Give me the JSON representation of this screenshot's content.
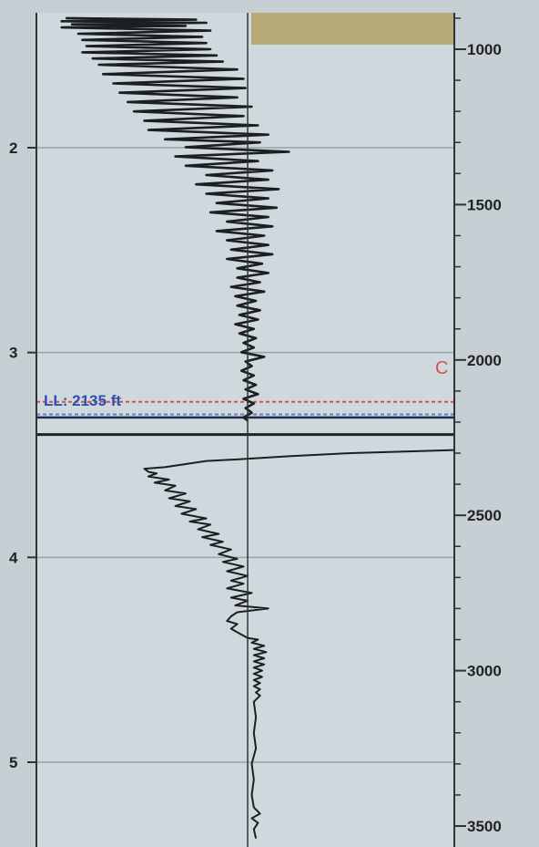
{
  "chart_data": {
    "type": "line",
    "title": "",
    "xlabel": "",
    "ylabel": "",
    "left_axis": {
      "ticks": [
        "2",
        "3",
        "4",
        "5"
      ],
      "values": [
        2,
        3,
        4,
        5
      ],
      "range": [
        1.4,
        5.4
      ]
    },
    "right_axis": {
      "ticks": [
        "1000",
        "1500",
        "2000",
        "2500",
        "3000",
        "3500"
      ],
      "values": [
        1000,
        1500,
        2000,
        2500,
        3000,
        3500
      ],
      "range": [
        880,
        3540
      ],
      "unit": "ft"
    },
    "grid": true,
    "center_reference_value": 0,
    "x_range": [
      -1,
      1
    ],
    "markers": [
      {
        "label": "LL: 2135 ft",
        "depth": 2135,
        "color": "#d8504e",
        "style": "dashed"
      },
      {
        "label": "",
        "depth": 2175,
        "color": "#5b7fd6",
        "style": "dashed"
      },
      {
        "label": "",
        "depth": 2185,
        "color": "#1e2a46",
        "style": "solid"
      },
      {
        "label": "",
        "depth": 2240,
        "color": "#222222",
        "style": "solid"
      }
    ],
    "marker_c_label": "C",
    "series": [
      {
        "points": [
          [
            -0.88,
            900
          ],
          [
            -0.25,
            905
          ],
          [
            -0.9,
            910
          ],
          [
            -0.2,
            915
          ],
          [
            -0.85,
            920
          ],
          [
            -0.3,
            925
          ],
          [
            -0.9,
            930
          ],
          [
            -0.18,
            940
          ],
          [
            -0.82,
            950
          ],
          [
            -0.22,
            960
          ],
          [
            -0.8,
            970
          ],
          [
            -0.2,
            980
          ],
          [
            -0.78,
            990
          ],
          [
            -0.18,
            1000
          ],
          [
            -0.8,
            1010
          ],
          [
            -0.15,
            1020
          ],
          [
            -0.75,
            1030
          ],
          [
            -0.12,
            1040
          ],
          [
            -0.72,
            1050
          ],
          [
            -0.05,
            1065
          ],
          [
            -0.7,
            1080
          ],
          [
            -0.02,
            1095
          ],
          [
            -0.65,
            1110
          ],
          [
            -0.01,
            1125
          ],
          [
            -0.62,
            1140
          ],
          [
            -0.05,
            1155
          ],
          [
            -0.58,
            1170
          ],
          [
            0.02,
            1185
          ],
          [
            -0.55,
            1200
          ],
          [
            -0.02,
            1215
          ],
          [
            -0.5,
            1230
          ],
          [
            0.05,
            1245
          ],
          [
            -0.48,
            1260
          ],
          [
            0.1,
            1275
          ],
          [
            -0.4,
            1290
          ],
          [
            0.06,
            1300
          ],
          [
            -0.3,
            1315
          ],
          [
            0.2,
            1330
          ],
          [
            -0.35,
            1345
          ],
          [
            0.05,
            1360
          ],
          [
            -0.3,
            1375
          ],
          [
            0.12,
            1390
          ],
          [
            -0.2,
            1405
          ],
          [
            0.1,
            1420
          ],
          [
            -0.25,
            1435
          ],
          [
            0.15,
            1450
          ],
          [
            -0.2,
            1465
          ],
          [
            0.1,
            1480
          ],
          [
            -0.15,
            1495
          ],
          [
            0.14,
            1510
          ],
          [
            -0.18,
            1525
          ],
          [
            0.1,
            1540
          ],
          [
            -0.1,
            1555
          ],
          [
            0.12,
            1570
          ],
          [
            -0.15,
            1585
          ],
          [
            0.08,
            1600
          ],
          [
            -0.1,
            1615
          ],
          [
            0.1,
            1630
          ],
          [
            -0.08,
            1645
          ],
          [
            0.12,
            1660
          ],
          [
            -0.1,
            1675
          ],
          [
            0.07,
            1690
          ],
          [
            -0.05,
            1705
          ],
          [
            0.1,
            1720
          ],
          [
            -0.05,
            1735
          ],
          [
            0.06,
            1750
          ],
          [
            -0.08,
            1765
          ],
          [
            0.08,
            1780
          ],
          [
            -0.06,
            1795
          ],
          [
            0.04,
            1810
          ],
          [
            -0.05,
            1825
          ],
          [
            0.06,
            1840
          ],
          [
            -0.04,
            1855
          ],
          [
            0.05,
            1870
          ],
          [
            -0.06,
            1885
          ],
          [
            0.03,
            1900
          ],
          [
            -0.04,
            1915
          ],
          [
            0.04,
            1930
          ],
          [
            -0.02,
            1945
          ],
          [
            0.03,
            1960
          ],
          [
            -0.03,
            1975
          ],
          [
            0.08,
            1990
          ],
          [
            -0.01,
            2005
          ],
          [
            0.02,
            2020
          ],
          [
            -0.03,
            2035
          ],
          [
            0.03,
            2050
          ],
          [
            -0.02,
            2065
          ],
          [
            0.04,
            2080
          ],
          [
            -0.01,
            2095
          ],
          [
            0.05,
            2110
          ],
          [
            -0.02,
            2125
          ],
          [
            0.03,
            2140
          ],
          [
            -0.01,
            2155
          ],
          [
            0.02,
            2170
          ],
          [
            -0.02,
            2185
          ],
          [
            0.0,
            2195
          ]
        ]
      },
      {
        "points": [
          [
            1.0,
            2290
          ],
          [
            0.5,
            2300
          ],
          [
            0.2,
            2310
          ],
          [
            -0.05,
            2320
          ],
          [
            -0.2,
            2325
          ],
          [
            -0.3,
            2335
          ],
          [
            -0.4,
            2345
          ],
          [
            -0.5,
            2350
          ],
          [
            -0.48,
            2360
          ],
          [
            -0.44,
            2365
          ],
          [
            -0.48,
            2375
          ],
          [
            -0.38,
            2385
          ],
          [
            -0.45,
            2395
          ],
          [
            -0.35,
            2405
          ],
          [
            -0.4,
            2420
          ],
          [
            -0.3,
            2430
          ],
          [
            -0.38,
            2445
          ],
          [
            -0.28,
            2455
          ],
          [
            -0.35,
            2470
          ],
          [
            -0.25,
            2480
          ],
          [
            -0.32,
            2495
          ],
          [
            -0.2,
            2510
          ],
          [
            -0.28,
            2520
          ],
          [
            -0.18,
            2530
          ],
          [
            -0.24,
            2545
          ],
          [
            -0.14,
            2560
          ],
          [
            -0.22,
            2570
          ],
          [
            -0.12,
            2585
          ],
          [
            -0.18,
            2595
          ],
          [
            -0.08,
            2610
          ],
          [
            -0.14,
            2625
          ],
          [
            -0.05,
            2640
          ],
          [
            -0.12,
            2650
          ],
          [
            -0.02,
            2665
          ],
          [
            -0.1,
            2680
          ],
          [
            0.0,
            2695
          ],
          [
            -0.08,
            2710
          ],
          [
            -0.02,
            2720
          ],
          [
            -0.1,
            2735
          ],
          [
            0.02,
            2750
          ],
          [
            -0.08,
            2765
          ],
          [
            0.0,
            2775
          ],
          [
            -0.06,
            2790
          ],
          [
            0.1,
            2800
          ],
          [
            -0.05,
            2812
          ],
          [
            -0.08,
            2825
          ],
          [
            -0.1,
            2840
          ],
          [
            -0.05,
            2850
          ],
          [
            -0.08,
            2865
          ],
          [
            -0.04,
            2880
          ],
          [
            0.0,
            2895
          ],
          [
            0.05,
            2900
          ],
          [
            0.02,
            2910
          ],
          [
            0.08,
            2920
          ],
          [
            0.03,
            2930
          ],
          [
            0.09,
            2940
          ],
          [
            0.03,
            2950
          ],
          [
            0.08,
            2960
          ],
          [
            0.03,
            2970
          ],
          [
            0.08,
            2980
          ],
          [
            0.03,
            2990
          ],
          [
            0.07,
            3000
          ],
          [
            0.03,
            3010
          ],
          [
            0.07,
            3020
          ],
          [
            0.03,
            3030
          ],
          [
            0.06,
            3040
          ],
          [
            0.03,
            3050
          ],
          [
            0.06,
            3060
          ],
          [
            0.04,
            3070
          ],
          [
            0.06,
            3080
          ],
          [
            0.03,
            3100
          ],
          [
            0.04,
            3150
          ],
          [
            0.03,
            3200
          ],
          [
            0.04,
            3250
          ],
          [
            0.02,
            3300
          ],
          [
            0.03,
            3350
          ],
          [
            0.02,
            3400
          ],
          [
            0.03,
            3440
          ],
          [
            0.06,
            3460
          ],
          [
            0.02,
            3475
          ],
          [
            0.05,
            3490
          ],
          [
            0.03,
            3510
          ],
          [
            0.04,
            3540
          ]
        ]
      }
    ]
  },
  "colors": {
    "panel_bg": "#cfd9dd",
    "top_band": "#b6ab79",
    "grid": "#9aa3a8",
    "axis": "#333333",
    "trace": "#1b1f23"
  }
}
